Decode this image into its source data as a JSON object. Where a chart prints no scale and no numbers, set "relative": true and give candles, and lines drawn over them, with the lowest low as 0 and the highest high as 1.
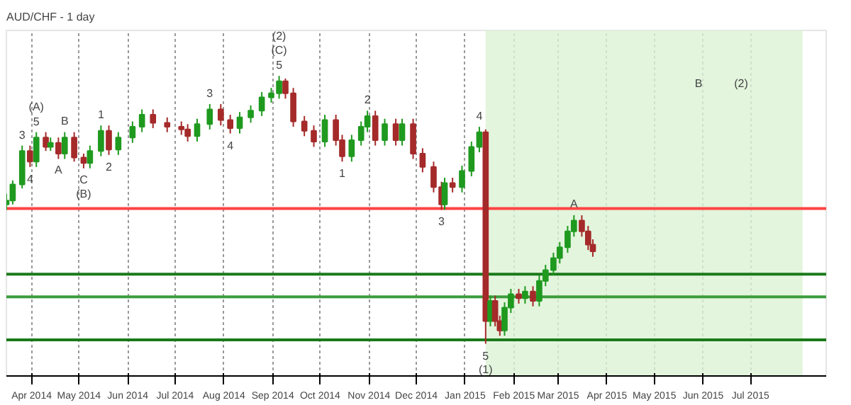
{
  "chart_data": {
    "type": "candlestick",
    "title": "AUD/CHF - 1 day",
    "relative": true,
    "x": [
      "2014-03-16",
      "2014-03-20",
      "2014-03-26",
      "2014-03-31",
      "2014-04-04",
      "2014-04-10",
      "2014-04-13",
      "2014-04-18",
      "2014-04-22",
      "2014-04-28",
      "2014-05-04",
      "2014-05-08",
      "2014-05-15",
      "2014-05-20",
      "2014-05-26",
      "2014-06-04",
      "2014-06-10",
      "2014-06-17",
      "2014-06-26",
      "2014-07-05",
      "2014-07-09",
      "2014-07-15",
      "2014-07-23",
      "2014-07-30",
      "2014-08-05",
      "2014-08-11",
      "2014-08-18",
      "2014-08-25",
      "2014-08-31",
      "2014-09-05",
      "2014-09-09",
      "2014-09-14",
      "2014-09-21",
      "2014-09-27",
      "2014-10-04",
      "2014-10-11",
      "2014-10-15",
      "2014-10-21",
      "2014-10-27",
      "2014-10-31",
      "2014-11-05",
      "2014-11-11",
      "2014-11-18",
      "2014-11-22",
      "2014-11-29",
      "2014-12-05",
      "2014-12-12",
      "2014-12-17",
      "2014-12-19",
      "2014-12-24",
      "2014-12-30",
      "2015-01-05",
      "2015-01-10",
      "2015-01-14",
      "2015-01-17",
      "2015-01-20",
      "2015-01-23",
      "2015-01-26",
      "2015-01-30",
      "2015-02-04",
      "2015-02-08",
      "2015-02-13",
      "2015-02-17",
      "2015-02-21",
      "2015-02-26",
      "2015-03-02",
      "2015-03-07",
      "2015-03-11",
      "2015-03-16",
      "2015-03-20",
      "2015-03-23"
    ],
    "ohlc": [
      [
        0.52,
        0.56,
        0.5,
        0.535
      ],
      [
        0.535,
        0.61,
        0.52,
        0.595
      ],
      [
        0.595,
        0.74,
        0.58,
        0.72
      ],
      [
        0.72,
        0.74,
        0.66,
        0.68
      ],
      [
        0.68,
        0.79,
        0.66,
        0.77
      ],
      [
        0.77,
        0.79,
        0.72,
        0.735
      ],
      [
        0.735,
        0.77,
        0.72,
        0.75
      ],
      [
        0.75,
        0.77,
        0.69,
        0.71
      ],
      [
        0.71,
        0.79,
        0.69,
        0.77
      ],
      [
        0.77,
        0.79,
        0.68,
        0.695
      ],
      [
        0.695,
        0.71,
        0.655,
        0.675
      ],
      [
        0.675,
        0.74,
        0.655,
        0.72
      ],
      [
        0.72,
        0.815,
        0.7,
        0.795
      ],
      [
        0.795,
        0.815,
        0.705,
        0.725
      ],
      [
        0.725,
        0.79,
        0.705,
        0.77
      ],
      [
        0.77,
        0.83,
        0.75,
        0.81
      ],
      [
        0.81,
        0.875,
        0.79,
        0.855
      ],
      [
        0.855,
        0.875,
        0.805,
        0.825
      ],
      [
        0.825,
        0.845,
        0.79,
        0.81
      ],
      [
        0.81,
        0.83,
        0.78,
        0.8
      ],
      [
        0.8,
        0.82,
        0.755,
        0.775
      ],
      [
        0.775,
        0.84,
        0.755,
        0.82
      ],
      [
        0.82,
        0.895,
        0.8,
        0.875
      ],
      [
        0.875,
        0.895,
        0.815,
        0.835
      ],
      [
        0.835,
        0.855,
        0.785,
        0.805
      ],
      [
        0.805,
        0.865,
        0.785,
        0.845
      ],
      [
        0.845,
        0.89,
        0.825,
        0.87
      ],
      [
        0.87,
        0.94,
        0.85,
        0.92
      ],
      [
        0.92,
        0.955,
        0.9,
        0.935
      ],
      [
        0.935,
        1.0,
        0.915,
        0.98
      ],
      [
        0.98,
        0.99,
        0.915,
        0.935
      ],
      [
        0.935,
        0.955,
        0.81,
        0.83
      ],
      [
        0.83,
        0.85,
        0.775,
        0.795
      ],
      [
        0.795,
        0.815,
        0.735,
        0.755
      ],
      [
        0.755,
        0.855,
        0.735,
        0.835
      ],
      [
        0.835,
        0.855,
        0.74,
        0.76
      ],
      [
        0.76,
        0.78,
        0.68,
        0.7
      ],
      [
        0.7,
        0.78,
        0.68,
        0.76
      ],
      [
        0.76,
        0.83,
        0.74,
        0.81
      ],
      [
        0.81,
        0.87,
        0.79,
        0.85
      ],
      [
        0.85,
        0.87,
        0.74,
        0.76
      ],
      [
        0.76,
        0.84,
        0.74,
        0.82
      ],
      [
        0.82,
        0.84,
        0.74,
        0.76
      ],
      [
        0.76,
        0.84,
        0.74,
        0.82
      ],
      [
        0.82,
        0.84,
        0.69,
        0.71
      ],
      [
        0.71,
        0.73,
        0.64,
        0.66
      ],
      [
        0.66,
        0.68,
        0.565,
        0.585
      ],
      [
        0.585,
        0.605,
        0.5,
        0.52
      ],
      [
        0.52,
        0.62,
        0.5,
        0.6
      ],
      [
        0.6,
        0.62,
        0.565,
        0.585
      ],
      [
        0.585,
        0.665,
        0.565,
        0.645
      ],
      [
        0.645,
        0.755,
        0.625,
        0.735
      ],
      [
        0.735,
        0.81,
        0.715,
        0.79
      ],
      [
        0.79,
        0.8,
        0.0,
        0.085
      ],
      [
        0.085,
        0.18,
        0.065,
        0.16
      ],
      [
        0.16,
        0.18,
        0.065,
        0.085
      ],
      [
        0.085,
        0.105,
        0.03,
        0.05
      ],
      [
        0.05,
        0.155,
        0.03,
        0.135
      ],
      [
        0.135,
        0.205,
        0.115,
        0.185
      ],
      [
        0.185,
        0.205,
        0.15,
        0.17
      ],
      [
        0.17,
        0.215,
        0.15,
        0.195
      ],
      [
        0.195,
        0.215,
        0.14,
        0.16
      ],
      [
        0.16,
        0.255,
        0.14,
        0.235
      ],
      [
        0.235,
        0.295,
        0.215,
        0.275
      ],
      [
        0.275,
        0.34,
        0.255,
        0.32
      ],
      [
        0.32,
        0.38,
        0.3,
        0.36
      ],
      [
        0.36,
        0.44,
        0.34,
        0.42
      ],
      [
        0.42,
        0.48,
        0.4,
        0.46
      ],
      [
        0.46,
        0.48,
        0.4,
        0.42
      ],
      [
        0.42,
        0.44,
        0.35,
        0.37
      ],
      [
        0.37,
        0.39,
        0.325,
        0.345
      ]
    ],
    "xlim": [
      "2014-03-16",
      "2015-08-18"
    ],
    "xticks": [
      {
        "value": "2014-04-01",
        "label": "Apr 2014"
      },
      {
        "value": "2014-05-01",
        "label": "May 2014"
      },
      {
        "value": "2014-06-01",
        "label": "Jun 2014"
      },
      {
        "value": "2014-07-01",
        "label": "Jul 2014"
      },
      {
        "value": "2014-08-01",
        "label": "Aug 2014"
      },
      {
        "value": "2014-09-01",
        "label": "Sep 2014"
      },
      {
        "value": "2014-10-01",
        "label": "Oct 2014"
      },
      {
        "value": "2014-11-01",
        "label": "Nov 2014"
      },
      {
        "value": "2014-12-01",
        "label": "Dec 2014"
      },
      {
        "value": "2015-01-01",
        "label": "Jan 2015"
      },
      {
        "value": "2015-02-01",
        "label": "Feb 2015"
      },
      {
        "value": "2015-03-01",
        "label": "Mar 2015"
      },
      {
        "value": "2015-04-01",
        "label": "Apr 2015"
      },
      {
        "value": "2015-05-01",
        "label": "May 2015"
      },
      {
        "value": "2015-06-01",
        "label": "Jun 2015"
      },
      {
        "value": "2015-07-01",
        "label": "Jul 2015"
      }
    ],
    "grid": "x",
    "ref_lines": [
      {
        "axis": "y",
        "value": 0.505,
        "color": "#ff4444"
      },
      {
        "axis": "y",
        "value": 0.26,
        "color": "#1a7a1a"
      },
      {
        "axis": "y",
        "value": 0.175,
        "color": "#3c9c3c"
      },
      {
        "axis": "y",
        "value": 0.015,
        "color": "#1a7a1a"
      }
    ],
    "bands": [
      {
        "axis": "x",
        "from": "2015-01-14",
        "to": "2015-08-03",
        "color": "#dcf3d4"
      }
    ],
    "annotations": [
      {
        "text": "3",
        "x": "2014-03-26",
        "y": 0.74
      },
      {
        "text": "4",
        "x": "2014-03-31",
        "y": 0.66
      },
      {
        "text": "5",
        "x": "2014-04-04",
        "y": 0.79
      },
      {
        "text": "(A)",
        "x": "2014-04-04",
        "y": 0.79
      },
      {
        "text": "A",
        "x": "2014-04-18",
        "y": 0.69
      },
      {
        "text": "B",
        "x": "2014-04-22",
        "y": 0.79
      },
      {
        "text": "C",
        "x": "2014-05-04",
        "y": 0.655
      },
      {
        "text": "(B)",
        "x": "2014-05-04",
        "y": 0.655
      },
      {
        "text": "1",
        "x": "2014-05-15",
        "y": 0.815
      },
      {
        "text": "2",
        "x": "2014-05-20",
        "y": 0.705
      },
      {
        "text": "3",
        "x": "2014-07-23",
        "y": 0.895
      },
      {
        "text": "4",
        "x": "2014-08-05",
        "y": 0.785
      },
      {
        "text": "5",
        "x": "2014-09-05",
        "y": 1.0
      },
      {
        "text": "(C)",
        "x": "2014-09-05",
        "y": 1.0
      },
      {
        "text": "(2)",
        "x": "2014-09-05",
        "y": 1.0
      },
      {
        "text": "1",
        "x": "2014-10-15",
        "y": 0.68
      },
      {
        "text": "2",
        "x": "2014-10-31",
        "y": 0.87
      },
      {
        "text": "3",
        "x": "2014-12-17",
        "y": 0.5
      },
      {
        "text": "4",
        "x": "2015-01-10",
        "y": 0.81
      },
      {
        "text": "5",
        "x": "2015-01-14",
        "y": 0.0
      },
      {
        "text": "(1)",
        "x": "2015-01-14",
        "y": 0.0
      },
      {
        "text": "A",
        "x": "2015-03-11",
        "y": 0.48
      },
      "(2)",
      "B"
    ]
  }
}
